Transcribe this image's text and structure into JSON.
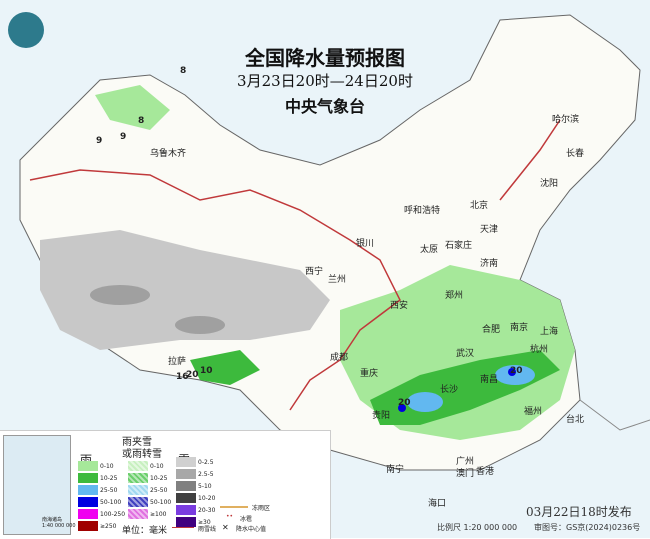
{
  "title": "全国降水量预报图",
  "period": "3月23日20时—24日20时",
  "agency": "中央气象台",
  "issued": "03月22日18时发布",
  "scale": "比例尺 1:20 000 000",
  "map_no": "审图号：GS京(2024)0236号",
  "cities": [
    "乌鲁木齐",
    "哈尔滨",
    "长春",
    "沈阳",
    "呼和浩特",
    "北京",
    "天津",
    "石家庄",
    "太原",
    "银川",
    "西宁",
    "兰州",
    "济南",
    "郑州",
    "西安",
    "合肥",
    "南京",
    "上海",
    "杭州",
    "武汉",
    "成都",
    "重庆",
    "长沙",
    "南昌",
    "福州",
    "台北",
    "拉萨",
    "贵阳",
    "昆明",
    "南宁",
    "广州",
    "香港",
    "澳门",
    "海口"
  ],
  "center_values": [
    "8",
    "8",
    "9",
    "9",
    "10",
    "20",
    "20",
    "20",
    "16"
  ],
  "legend": {
    "rain": {
      "title": "雨",
      "items": [
        {
          "label": "0-10",
          "color": "#a6e89a"
        },
        {
          "label": "10-25",
          "color": "#3dba3d"
        },
        {
          "label": "25-50",
          "color": "#62b8f0"
        },
        {
          "label": "50-100",
          "color": "#0000e0"
        },
        {
          "label": "100-250",
          "color": "#f000f0"
        },
        {
          "label": "≥250",
          "color": "#a00000"
        }
      ]
    },
    "sleet": {
      "title": "雨夹雪\n或雨转雪",
      "items": [
        {
          "label": "0-10",
          "color": "#c8f0c0"
        },
        {
          "label": "10-25",
          "color": "#6ccf6c"
        },
        {
          "label": "25-50",
          "color": "#a0d8f0"
        },
        {
          "label": "50-100",
          "color": "#4040c0"
        },
        {
          "label": "≥100",
          "color": "#e070e0"
        }
      ]
    },
    "snow": {
      "title": "雪",
      "items": [
        {
          "label": "0-2.5",
          "color": "#d0d0d0"
        },
        {
          "label": "2.5-5",
          "color": "#a8a8a8"
        },
        {
          "label": "5-10",
          "color": "#808080"
        },
        {
          "label": "10-20",
          "color": "#404040"
        },
        {
          "label": "20-30",
          "color": "#7a3ce0"
        },
        {
          "label": "≥30",
          "color": "#400080"
        }
      ]
    },
    "unit": "单位：毫米",
    "symbols": [
      "冻雨区",
      "冰雹",
      "雨雪线",
      "降水中心值"
    ],
    "inset_label": "南海诸岛\n1:40 000 000"
  }
}
